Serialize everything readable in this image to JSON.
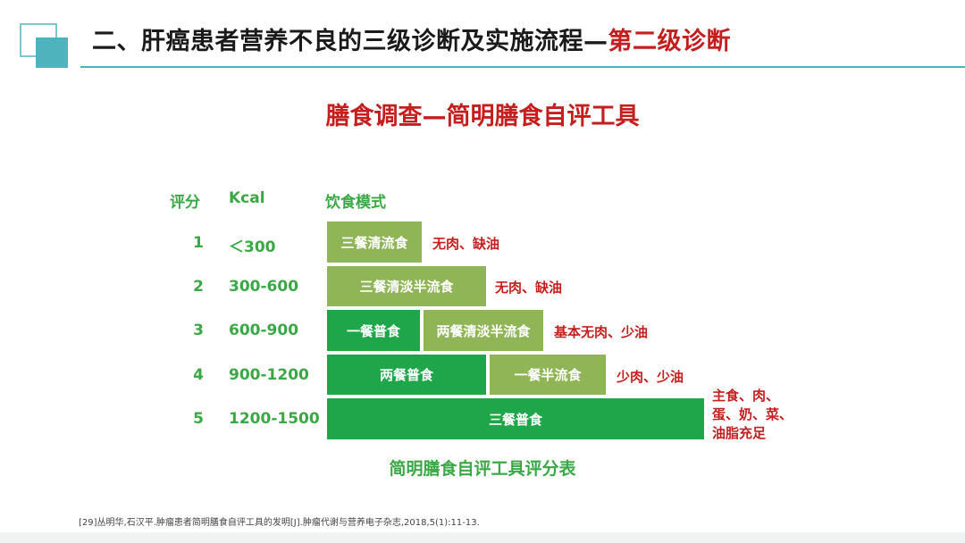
{
  "header": {
    "title_main": "二、肝癌患者营养不良的三级诊断及实施流程—",
    "title_accent": "第二级诊断"
  },
  "subtitle": "膳食调查—简明膳食自评工具",
  "table": {
    "col_score": "评分",
    "col_kcal": "Kcal",
    "col_diet": "饮食模式",
    "rows": [
      {
        "score": "1",
        "kcal": "＜300"
      },
      {
        "score": "2",
        "kcal": "300-600"
      },
      {
        "score": "3",
        "kcal": "600-900"
      },
      {
        "score": "4",
        "kcal": "900-1200"
      },
      {
        "score": "5",
        "kcal": "1200-1500"
      }
    ],
    "cells": {
      "r1": "三餐清流食",
      "r2": "三餐清淡半流食",
      "r3a": "一餐普食",
      "r3b": "两餐清淡半流食",
      "r4a": "两餐普食",
      "r4b": "一餐半流食",
      "r5": "三餐普食"
    },
    "notes": {
      "r1": "无肉、缺油",
      "r2": "无肉、缺油",
      "r3": "基本无肉、少油",
      "r4": "少肉、少油",
      "r5_line1": "主食、肉、",
      "r5_line2": "蛋、奶、菜、",
      "r5_line3": "油脂充足"
    }
  },
  "caption": "简明膳食自评工具评分表",
  "footnote": "[29]丛明华,石汉平.肿瘤患者简明膳食自评工具的发明[J].肿瘤代谢与营养电子杂志,2018,5(1):11-13.",
  "colors": {
    "accent_red": "#c51e1e",
    "green_dark": "#1fa64a",
    "green_light": "#8fb557",
    "teal": "#4fb3bd"
  }
}
